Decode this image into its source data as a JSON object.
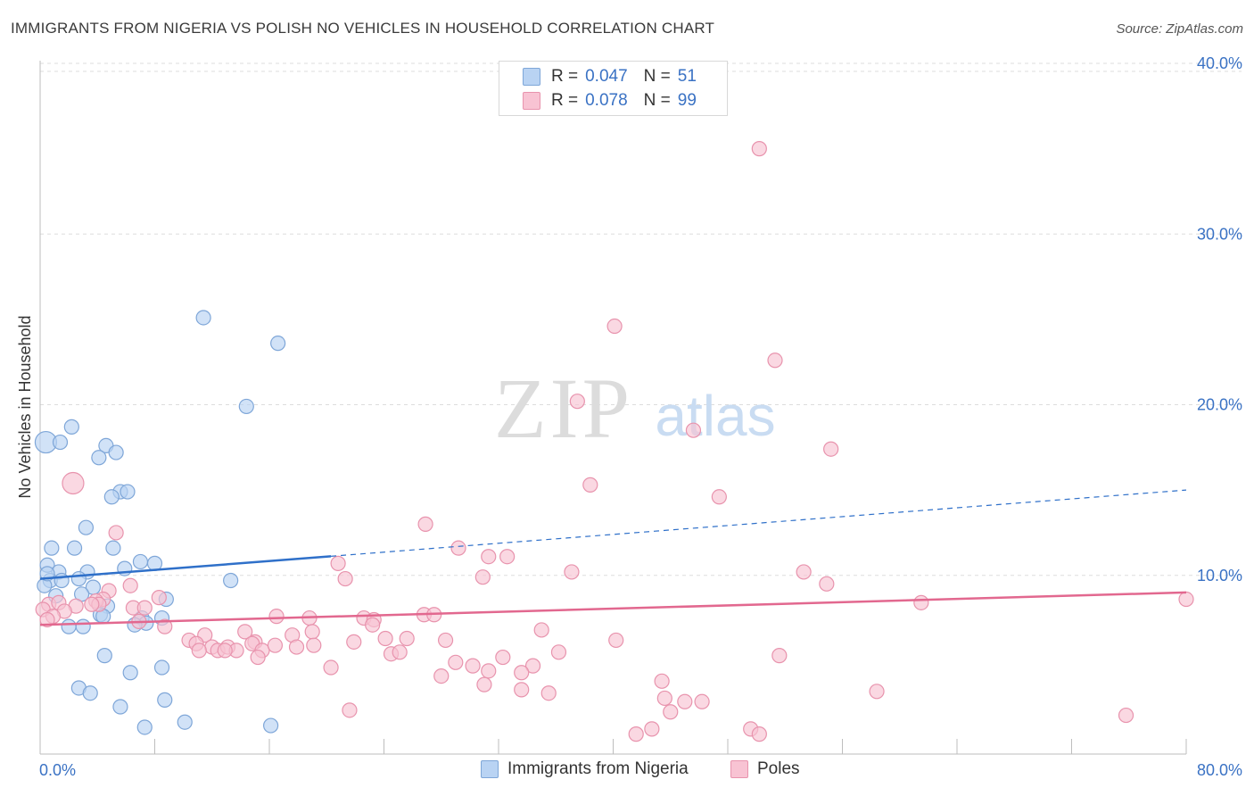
{
  "header": {
    "title": "IMMIGRANTS FROM NIGERIA VS POLISH NO VEHICLES IN HOUSEHOLD CORRELATION CHART",
    "source": "Source: ZipAtlas.com"
  },
  "watermark": {
    "zip": "ZIP",
    "atlas": "atlas"
  },
  "legend_top": [
    {
      "r_label": "R =",
      "r_value": "0.047",
      "n_label": "N =",
      "n_value": "51"
    },
    {
      "r_label": "R =",
      "r_value": "0.078",
      "n_label": "N =",
      "n_value": "99"
    }
  ],
  "legend_bottom": [
    {
      "label": "Immigrants from Nigeria"
    },
    {
      "label": "Poles"
    }
  ],
  "colors": {
    "blue_fill": "#b9d3f3",
    "blue_stroke": "#7ea6d8",
    "blue_line": "#2f70c9",
    "pink_fill": "#f8c3d3",
    "pink_stroke": "#e893ad",
    "pink_line": "#e2688f",
    "axis_text": "#3a72c4",
    "grid": "#dddddd"
  },
  "chart_data": {
    "type": "scatter",
    "title": "IMMIGRANTS FROM NIGERIA VS POLISH NO VEHICLES IN HOUSEHOLD CORRELATION CHART",
    "xlabel": "",
    "ylabel": "No Vehicles in Household",
    "xlim": [
      0,
      80
    ],
    "ylim": [
      0,
      40
    ],
    "x_tick_labels": [
      "0.0%",
      "80.0%"
    ],
    "y_ticks": [
      10,
      20,
      30,
      40
    ],
    "y_tick_labels": [
      "10.0%",
      "20.0%",
      "30.0%",
      "40.0%"
    ],
    "grid": true,
    "legend_position": "top-center",
    "series": [
      {
        "name": "Immigrants from Nigeria",
        "color": "#b9d3f3",
        "r": 0.047,
        "n": 51,
        "trend": {
          "x": [
            0,
            80
          ],
          "y": [
            9.8,
            15.0
          ],
          "solid_until_x": 20.3
        },
        "points": [
          [
            0.4,
            17.8
          ],
          [
            1.4,
            17.8
          ],
          [
            2.2,
            18.7
          ],
          [
            4.6,
            17.6
          ],
          [
            5.3,
            17.2
          ],
          [
            4.1,
            16.9
          ],
          [
            5.6,
            14.9
          ],
          [
            6.1,
            14.9
          ],
          [
            5.0,
            14.6
          ],
          [
            3.2,
            12.8
          ],
          [
            0.8,
            11.6
          ],
          [
            2.4,
            11.6
          ],
          [
            5.1,
            11.6
          ],
          [
            7.0,
            10.8
          ],
          [
            8.0,
            10.7
          ],
          [
            0.5,
            10.6
          ],
          [
            1.3,
            10.2
          ],
          [
            3.3,
            10.2
          ],
          [
            5.9,
            10.4
          ],
          [
            0.7,
            9.7
          ],
          [
            1.5,
            9.7
          ],
          [
            2.7,
            9.8
          ],
          [
            3.7,
            9.3
          ],
          [
            0.3,
            9.4
          ],
          [
            2.9,
            8.9
          ],
          [
            1.1,
            8.8
          ],
          [
            8.8,
            8.6
          ],
          [
            4.7,
            8.2
          ],
          [
            4.2,
            7.7
          ],
          [
            4.4,
            7.6
          ],
          [
            8.5,
            7.5
          ],
          [
            7.1,
            7.5
          ],
          [
            7.4,
            7.2
          ],
          [
            6.6,
            7.1
          ],
          [
            2.0,
            7.0
          ],
          [
            3.0,
            7.0
          ],
          [
            4.5,
            5.3
          ],
          [
            6.3,
            4.3
          ],
          [
            8.5,
            4.6
          ],
          [
            13.3,
            9.7
          ],
          [
            11.4,
            25.1
          ],
          [
            16.6,
            23.6
          ],
          [
            14.4,
            19.9
          ],
          [
            2.7,
            3.4
          ],
          [
            3.5,
            3.1
          ],
          [
            5.6,
            2.3
          ],
          [
            8.7,
            2.7
          ],
          [
            7.3,
            1.1
          ],
          [
            10.1,
            1.4
          ],
          [
            16.1,
            1.2
          ],
          [
            0.5,
            10.1
          ]
        ]
      },
      {
        "name": "Poles",
        "color": "#f8c3d3",
        "r": 0.078,
        "n": 99,
        "trend": {
          "x": [
            0,
            80
          ],
          "y": [
            7.1,
            9.0
          ]
        },
        "points": [
          [
            50.2,
            35.0
          ],
          [
            40.1,
            24.6
          ],
          [
            51.3,
            22.6
          ],
          [
            37.5,
            20.2
          ],
          [
            45.6,
            18.5
          ],
          [
            55.2,
            17.4
          ],
          [
            2.3,
            15.4
          ],
          [
            38.4,
            15.3
          ],
          [
            47.4,
            14.6
          ],
          [
            26.9,
            13.0
          ],
          [
            5.3,
            12.5
          ],
          [
            29.2,
            11.6
          ],
          [
            31.3,
            11.1
          ],
          [
            32.6,
            11.1
          ],
          [
            20.8,
            10.7
          ],
          [
            37.1,
            10.2
          ],
          [
            53.3,
            10.2
          ],
          [
            30.9,
            9.9
          ],
          [
            21.3,
            9.8
          ],
          [
            54.9,
            9.5
          ],
          [
            6.3,
            9.4
          ],
          [
            4.8,
            9.1
          ],
          [
            8.3,
            8.7
          ],
          [
            4.4,
            8.6
          ],
          [
            3.9,
            8.5
          ],
          [
            0.6,
            8.3
          ],
          [
            1.3,
            8.4
          ],
          [
            2.5,
            8.2
          ],
          [
            6.5,
            8.1
          ],
          [
            7.3,
            8.1
          ],
          [
            4.1,
            8.3
          ],
          [
            3.6,
            8.3
          ],
          [
            0.2,
            8.0
          ],
          [
            1.7,
            7.9
          ],
          [
            0.9,
            7.6
          ],
          [
            0.5,
            7.4
          ],
          [
            16.5,
            7.6
          ],
          [
            18.8,
            7.5
          ],
          [
            22.6,
            7.5
          ],
          [
            23.3,
            7.4
          ],
          [
            26.8,
            7.7
          ],
          [
            27.5,
            7.7
          ],
          [
            61.5,
            8.4
          ],
          [
            80.0,
            8.6
          ],
          [
            6.9,
            7.3
          ],
          [
            8.7,
            7.0
          ],
          [
            14.3,
            6.7
          ],
          [
            15.0,
            6.1
          ],
          [
            17.6,
            6.5
          ],
          [
            19.0,
            6.7
          ],
          [
            10.4,
            6.2
          ],
          [
            11.5,
            6.5
          ],
          [
            10.9,
            6.0
          ],
          [
            23.2,
            7.1
          ],
          [
            24.1,
            6.3
          ],
          [
            25.6,
            6.3
          ],
          [
            28.3,
            6.2
          ],
          [
            35.0,
            6.8
          ],
          [
            40.2,
            6.2
          ],
          [
            21.9,
            6.1
          ],
          [
            12.0,
            5.8
          ],
          [
            12.4,
            5.6
          ],
          [
            13.1,
            5.8
          ],
          [
            13.7,
            5.6
          ],
          [
            11.1,
            5.6
          ],
          [
            14.8,
            6.0
          ],
          [
            15.5,
            5.6
          ],
          [
            16.4,
            5.9
          ],
          [
            17.9,
            5.8
          ],
          [
            19.1,
            5.9
          ],
          [
            24.5,
            5.4
          ],
          [
            25.1,
            5.5
          ],
          [
            36.2,
            5.5
          ],
          [
            12.9,
            5.6
          ],
          [
            15.2,
            5.2
          ],
          [
            29.0,
            4.9
          ],
          [
            30.2,
            4.7
          ],
          [
            32.3,
            5.2
          ],
          [
            34.4,
            4.7
          ],
          [
            51.6,
            5.3
          ],
          [
            20.3,
            4.6
          ],
          [
            31.3,
            4.4
          ],
          [
            28.0,
            4.1
          ],
          [
            33.6,
            4.3
          ],
          [
            31.0,
            3.6
          ],
          [
            33.6,
            3.3
          ],
          [
            35.5,
            3.1
          ],
          [
            43.4,
            3.8
          ],
          [
            43.6,
            2.8
          ],
          [
            44.0,
            2.0
          ],
          [
            45.0,
            2.6
          ],
          [
            46.2,
            2.6
          ],
          [
            58.4,
            3.2
          ],
          [
            21.6,
            2.1
          ],
          [
            41.6,
            0.7
          ],
          [
            42.7,
            1.0
          ],
          [
            49.6,
            1.0
          ],
          [
            50.2,
            0.7
          ],
          [
            75.8,
            1.8
          ]
        ]
      }
    ]
  }
}
